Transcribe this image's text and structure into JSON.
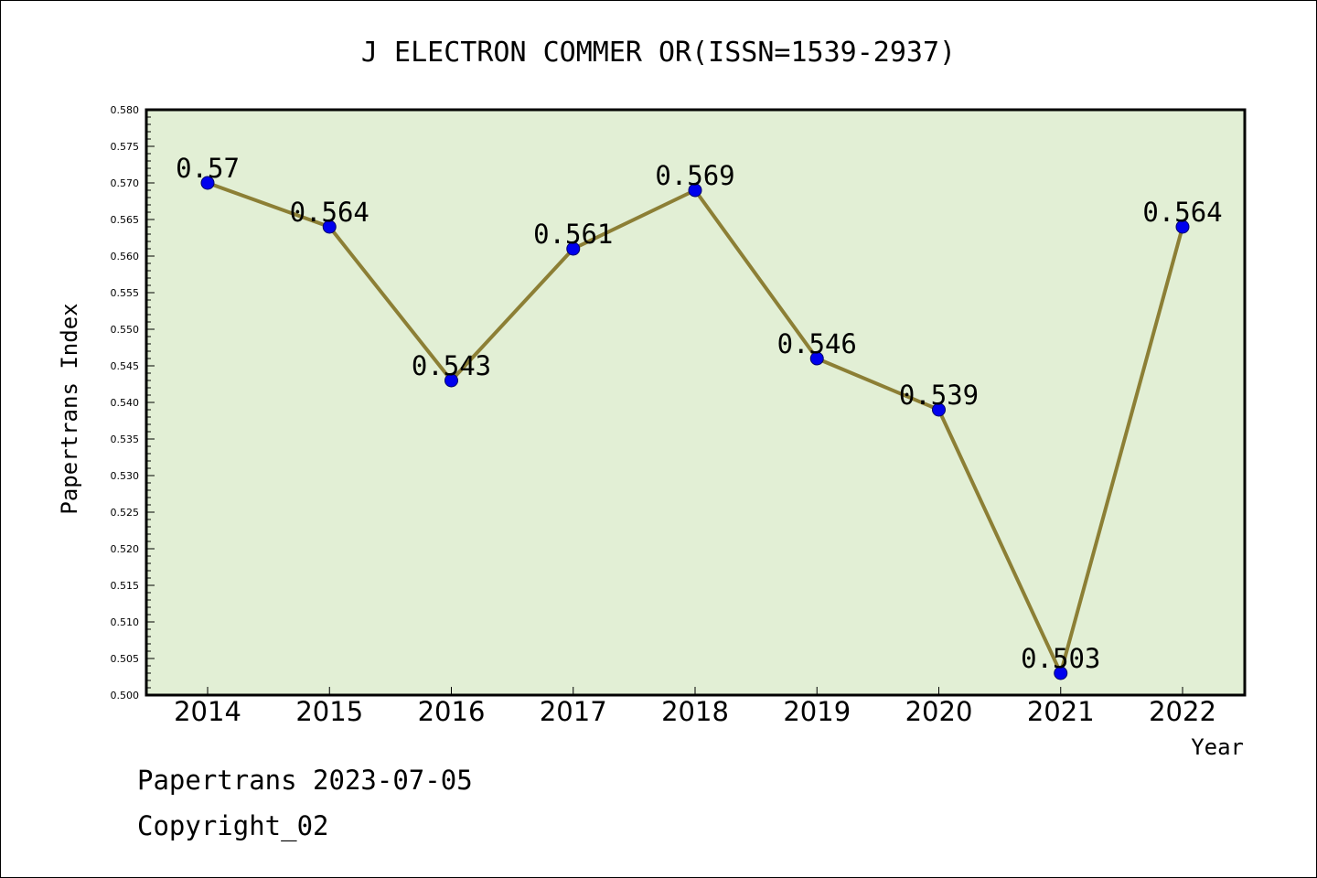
{
  "chart_data": {
    "type": "line",
    "title": "J ELECTRON COMMER OR(ISSN=1539-2937)",
    "xlabel": "Year",
    "ylabel": "Papertrans Index",
    "categories": [
      "2014",
      "2015",
      "2016",
      "2017",
      "2018",
      "2019",
      "2020",
      "2021",
      "2022"
    ],
    "values": [
      0.57,
      0.564,
      0.543,
      0.561,
      0.569,
      0.546,
      0.539,
      0.503,
      0.564
    ],
    "data_labels": [
      "0.57",
      "0.564",
      "0.543",
      "0.561",
      "0.569",
      "0.546",
      "0.539",
      "0.503",
      "0.564"
    ],
    "ylim": [
      0.5,
      0.58
    ],
    "yticks": [
      "0.500",
      "0.505",
      "0.510",
      "0.515",
      "0.520",
      "0.525",
      "0.530",
      "0.535",
      "0.540",
      "0.545",
      "0.550",
      "0.555",
      "0.560",
      "0.565",
      "0.570",
      "0.575",
      "0.580"
    ],
    "grid": false,
    "colors": {
      "plot_bg": "#e2efd5",
      "line": "#8c7f35",
      "marker": "#0000ee"
    }
  },
  "footer": {
    "line1": "Papertrans 2023-07-05",
    "line2": "Copyright_02"
  }
}
